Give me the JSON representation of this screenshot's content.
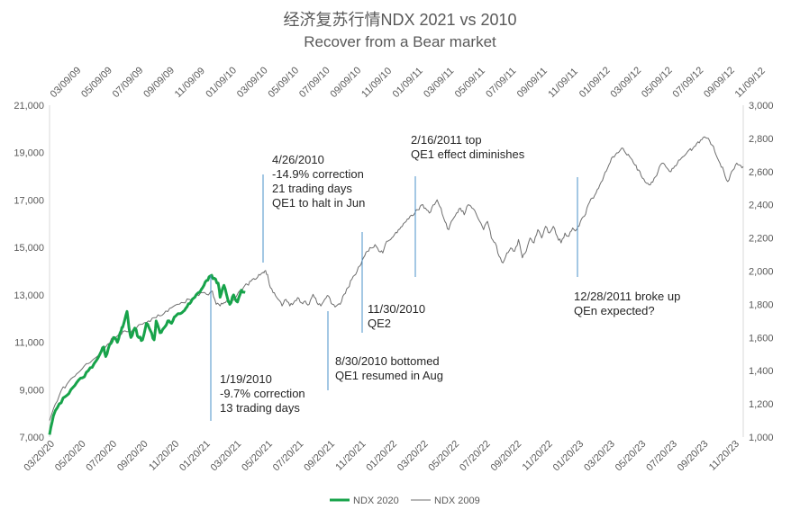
{
  "chart_data": {
    "type": "line",
    "title": "经济复苏行情NDX 2021 vs 2010",
    "subtitle": "Recover from a Bear market",
    "left_axis": {
      "min": 7000,
      "max": 21000,
      "ticks": [
        "21,000",
        "19,000",
        "17,000",
        "15,000",
        "13,000",
        "11,000",
        "9,000",
        "7,000"
      ]
    },
    "right_axis": {
      "min": 1000,
      "max": 3000,
      "ticks": [
        "3,000",
        "2,800",
        "2,600",
        "2,400",
        "2,200",
        "2,000",
        "1,800",
        "1,600",
        "1,400",
        "1,200",
        "1,000"
      ]
    },
    "top_x_ticks": [
      "03/09/09",
      "05/09/09",
      "07/09/09",
      "09/09/09",
      "11/09/09",
      "01/09/10",
      "03/09/10",
      "05/09/10",
      "07/09/10",
      "09/09/10",
      "11/09/10",
      "01/09/11",
      "03/09/11",
      "05/09/11",
      "07/09/11",
      "09/09/11",
      "11/09/11",
      "01/09/12",
      "03/09/12",
      "05/09/12",
      "07/09/12",
      "09/09/12",
      "11/09/12"
    ],
    "bottom_x_ticks": [
      "03/20/20",
      "05/20/20",
      "07/20/20",
      "09/20/20",
      "11/20/20",
      "01/20/21",
      "03/20/21",
      "05/20/21",
      "07/20/21",
      "09/20/21",
      "11/20/21",
      "01/20/22",
      "03/20/22",
      "05/20/22",
      "07/20/22",
      "09/20/22",
      "11/20/22",
      "01/20/23",
      "03/20/23",
      "05/20/23",
      "07/20/23",
      "09/20/23",
      "11/20/23"
    ],
    "series": [
      {
        "name": "NDX 2020",
        "axis": "left",
        "color": "#17a34a",
        "points": [
          [
            0,
            7100
          ],
          [
            4,
            7900
          ],
          [
            10,
            8400
          ],
          [
            16,
            8700
          ],
          [
            22,
            9000
          ],
          [
            28,
            9300
          ],
          [
            34,
            9500
          ],
          [
            40,
            9800
          ],
          [
            46,
            10100
          ],
          [
            52,
            10500
          ],
          [
            56,
            10800
          ],
          [
            58,
            10400
          ],
          [
            62,
            10900
          ],
          [
            66,
            11200
          ],
          [
            70,
            11000
          ],
          [
            74,
            11500
          ],
          [
            76,
            11700
          ],
          [
            80,
            12300
          ],
          [
            82,
            11600
          ],
          [
            84,
            11200
          ],
          [
            88,
            11600
          ],
          [
            92,
            11200
          ],
          [
            96,
            11100
          ],
          [
            100,
            11800
          ],
          [
            104,
            11500
          ],
          [
            108,
            11100
          ],
          [
            110,
            11900
          ],
          [
            114,
            11400
          ],
          [
            118,
            11600
          ],
          [
            122,
            11900
          ],
          [
            126,
            11800
          ],
          [
            130,
            12100
          ],
          [
            134,
            12200
          ],
          [
            138,
            12300
          ],
          [
            142,
            12500
          ],
          [
            146,
            12700
          ],
          [
            150,
            12900
          ],
          [
            154,
            13100
          ],
          [
            158,
            13300
          ],
          [
            162,
            13600
          ],
          [
            166,
            13800
          ],
          [
            170,
            13700
          ],
          [
            174,
            13500
          ],
          [
            176,
            12900
          ],
          [
            180,
            13400
          ],
          [
            184,
            12800
          ],
          [
            186,
            12600
          ],
          [
            190,
            13000
          ],
          [
            194,
            12700
          ],
          [
            198,
            13200
          ],
          [
            202,
            13100
          ]
        ]
      },
      {
        "name": "NDX 2009",
        "axis": "right",
        "color": "#6e6e6e",
        "points": [
          [
            0,
            1100
          ],
          [
            6,
            1200
          ],
          [
            12,
            1280
          ],
          [
            18,
            1320
          ],
          [
            24,
            1360
          ],
          [
            30,
            1390
          ],
          [
            36,
            1430
          ],
          [
            42,
            1450
          ],
          [
            48,
            1480
          ],
          [
            54,
            1520
          ],
          [
            60,
            1560
          ],
          [
            66,
            1600
          ],
          [
            72,
            1620
          ],
          [
            78,
            1640
          ],
          [
            84,
            1630
          ],
          [
            90,
            1660
          ],
          [
            96,
            1680
          ],
          [
            102,
            1700
          ],
          [
            108,
            1720
          ],
          [
            114,
            1730
          ],
          [
            120,
            1760
          ],
          [
            126,
            1780
          ],
          [
            132,
            1800
          ],
          [
            138,
            1810
          ],
          [
            144,
            1830
          ],
          [
            150,
            1850
          ],
          [
            156,
            1870
          ],
          [
            162,
            1860
          ],
          [
            168,
            1880
          ],
          [
            172,
            1800
          ],
          [
            176,
            1790
          ],
          [
            180,
            1810
          ],
          [
            184,
            1820
          ],
          [
            188,
            1830
          ],
          [
            192,
            1840
          ],
          [
            196,
            1880
          ],
          [
            200,
            1900
          ],
          [
            204,
            1920
          ],
          [
            208,
            1940
          ],
          [
            212,
            1950
          ],
          [
            216,
            1980
          ],
          [
            220,
            1990
          ],
          [
            222,
            2000
          ],
          [
            225,
            1980
          ],
          [
            228,
            1900
          ],
          [
            232,
            1870
          ],
          [
            236,
            1830
          ],
          [
            240,
            1790
          ],
          [
            244,
            1830
          ],
          [
            248,
            1790
          ],
          [
            252,
            1810
          ],
          [
            256,
            1840
          ],
          [
            260,
            1810
          ],
          [
            264,
            1820
          ],
          [
            268,
            1800
          ],
          [
            272,
            1860
          ],
          [
            276,
            1810
          ],
          [
            280,
            1790
          ],
          [
            284,
            1830
          ],
          [
            288,
            1850
          ],
          [
            292,
            1800
          ],
          [
            296,
            1790
          ],
          [
            300,
            1800
          ],
          [
            304,
            1860
          ],
          [
            308,
            1900
          ],
          [
            312,
            1950
          ],
          [
            316,
            1980
          ],
          [
            320,
            2030
          ],
          [
            324,
            2080
          ],
          [
            328,
            2120
          ],
          [
            332,
            2140
          ],
          [
            336,
            2160
          ],
          [
            340,
            2120
          ],
          [
            344,
            2110
          ],
          [
            348,
            2180
          ],
          [
            352,
            2190
          ],
          [
            356,
            2220
          ],
          [
            360,
            2250
          ],
          [
            364,
            2270
          ],
          [
            368,
            2300
          ],
          [
            372,
            2330
          ],
          [
            376,
            2340
          ],
          [
            380,
            2370
          ],
          [
            384,
            2400
          ],
          [
            388,
            2380
          ],
          [
            392,
            2350
          ],
          [
            396,
            2400
          ],
          [
            400,
            2430
          ],
          [
            404,
            2380
          ],
          [
            408,
            2300
          ],
          [
            412,
            2250
          ],
          [
            416,
            2310
          ],
          [
            420,
            2350
          ],
          [
            424,
            2380
          ],
          [
            428,
            2340
          ],
          [
            432,
            2400
          ],
          [
            436,
            2380
          ],
          [
            440,
            2350
          ],
          [
            444,
            2300
          ],
          [
            448,
            2250
          ],
          [
            452,
            2300
          ],
          [
            456,
            2200
          ],
          [
            460,
            2170
          ],
          [
            464,
            2090
          ],
          [
            468,
            2050
          ],
          [
            472,
            2110
          ],
          [
            476,
            2140
          ],
          [
            480,
            2120
          ],
          [
            484,
            2190
          ],
          [
            488,
            2080
          ],
          [
            492,
            2120
          ],
          [
            496,
            2200
          ],
          [
            500,
            2170
          ],
          [
            504,
            2250
          ],
          [
            508,
            2200
          ],
          [
            512,
            2270
          ],
          [
            516,
            2230
          ],
          [
            520,
            2270
          ],
          [
            524,
            2210
          ],
          [
            528,
            2170
          ],
          [
            532,
            2230
          ],
          [
            536,
            2210
          ],
          [
            540,
            2260
          ],
          [
            544,
            2250
          ],
          [
            548,
            2300
          ],
          [
            552,
            2330
          ],
          [
            556,
            2400
          ],
          [
            560,
            2440
          ],
          [
            564,
            2470
          ],
          [
            568,
            2520
          ],
          [
            572,
            2570
          ],
          [
            576,
            2620
          ],
          [
            580,
            2680
          ],
          [
            584,
            2700
          ],
          [
            588,
            2720
          ],
          [
            592,
            2740
          ],
          [
            596,
            2700
          ],
          [
            600,
            2680
          ],
          [
            604,
            2640
          ],
          [
            608,
            2610
          ],
          [
            612,
            2560
          ],
          [
            616,
            2530
          ],
          [
            620,
            2520
          ],
          [
            624,
            2560
          ],
          [
            628,
            2600
          ],
          [
            632,
            2650
          ],
          [
            636,
            2630
          ],
          [
            640,
            2600
          ],
          [
            644,
            2620
          ],
          [
            648,
            2650
          ],
          [
            652,
            2680
          ],
          [
            656,
            2700
          ],
          [
            660,
            2730
          ],
          [
            664,
            2740
          ],
          [
            668,
            2770
          ],
          [
            672,
            2790
          ],
          [
            676,
            2810
          ],
          [
            680,
            2800
          ],
          [
            684,
            2760
          ],
          [
            688,
            2700
          ],
          [
            692,
            2650
          ],
          [
            696,
            2600
          ],
          [
            700,
            2540
          ],
          [
            704,
            2600
          ],
          [
            708,
            2640
          ],
          [
            712,
            2640
          ],
          [
            716,
            2630
          ]
        ]
      }
    ],
    "annotations": [
      {
        "lines": [
          "4/26/2010",
          "-14.9% correction",
          "21 trading days",
          "QE1 to halt in Jun"
        ]
      },
      {
        "lines": [
          "2/16/2011  top",
          "QE1 effect diminishes"
        ]
      },
      {
        "lines": [
          "11/30/2010",
          "QE2"
        ]
      },
      {
        "lines": [
          "12/28/2011  broke up",
          "QEn expected?"
        ]
      },
      {
        "lines": [
          "8/30/2010  bottomed",
          "QE1 resumed in Aug"
        ]
      },
      {
        "lines": [
          "1/19/2010",
          "-9.7% correction",
          "13 trading days"
        ]
      }
    ],
    "legend": {
      "position": "bottom-center",
      "items": [
        "NDX 2020",
        "NDX 2009"
      ]
    }
  }
}
